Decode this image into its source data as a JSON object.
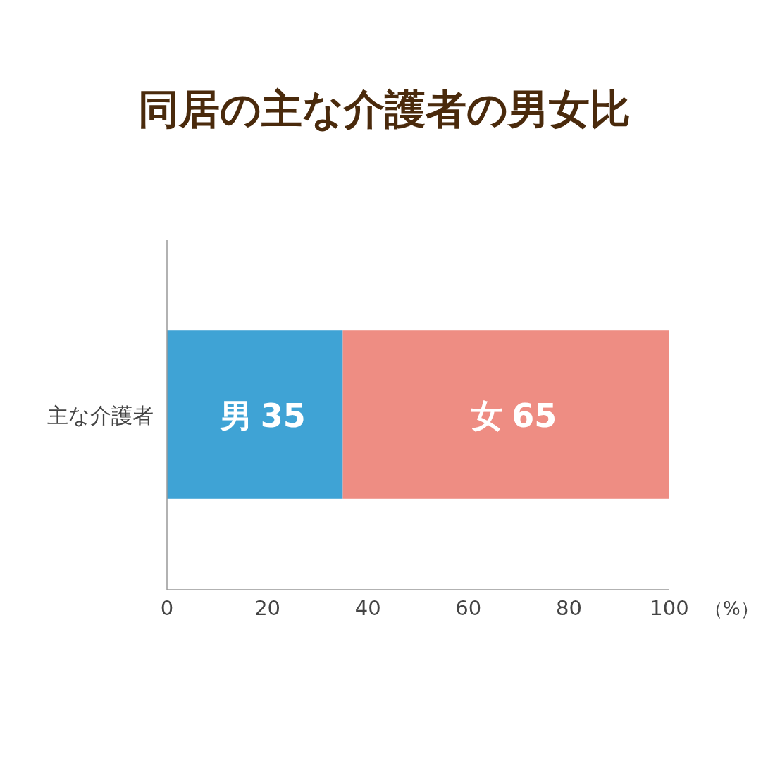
{
  "chart_data": {
    "type": "bar",
    "orientation": "horizontal",
    "stacked": true,
    "title": "同居の主な介護者の男女比",
    "xlabel": "（%）",
    "categories": [
      "主な介護者"
    ],
    "series": [
      {
        "name": "男",
        "color": "#3fa3d5",
        "values": [
          35
        ]
      },
      {
        "name": "女",
        "color": "#ee8d83",
        "values": [
          65
        ]
      }
    ],
    "xlim": [
      0,
      100
    ],
    "xticks": [
      0,
      20,
      40,
      60,
      80,
      100
    ],
    "data_labels": true,
    "grid": false
  }
}
